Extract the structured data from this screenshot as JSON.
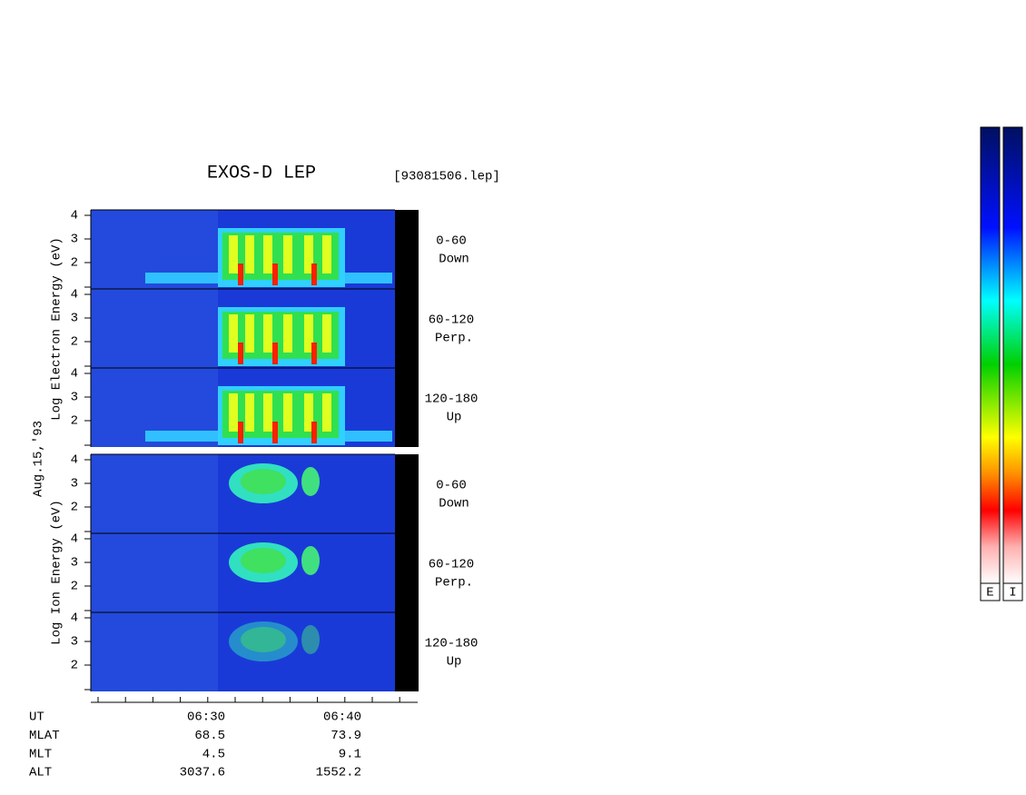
{
  "title": "EXOS-D LEP",
  "file": "[93081506.lep]",
  "date": "Aug.15,'93",
  "electron_axis_label": "Log  Electron  Energy (eV)",
  "ion_axis_label": "Log   Ion   Energy (eV)",
  "panels": [
    {
      "range": "0-60",
      "direction": "Down",
      "yticks": [
        4,
        3,
        2
      ]
    },
    {
      "range": "60-120",
      "direction": "Perp.",
      "yticks": [
        4,
        3,
        2
      ]
    },
    {
      "range": "120-180",
      "direction": "Up",
      "yticks": [
        4,
        3,
        2
      ]
    },
    {
      "range": "0-60",
      "direction": "Down",
      "yticks": [
        4,
        3,
        2
      ]
    },
    {
      "range": "60-120",
      "direction": "Perp.",
      "yticks": [
        4,
        3,
        2
      ]
    },
    {
      "range": "120-180",
      "direction": "Up",
      "yticks": [
        4,
        3,
        2
      ]
    }
  ],
  "time_axis": {
    "rows": [
      {
        "label": "UT",
        "values": [
          "06:30",
          "06:40"
        ]
      },
      {
        "label": "MLAT",
        "values": [
          68.5,
          73.9
        ]
      },
      {
        "label": "MLT",
        "values": [
          4.5,
          9.1
        ]
      },
      {
        "label": "ALT",
        "values": [
          3037.6,
          1552.2
        ]
      }
    ]
  },
  "colorbar": {
    "labels": [
      "E",
      "I"
    ]
  }
}
